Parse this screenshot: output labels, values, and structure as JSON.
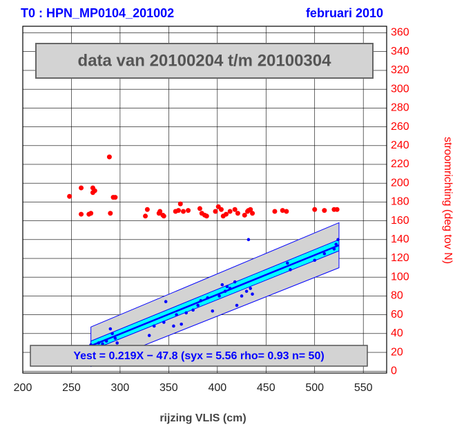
{
  "chart_data": {
    "type": "scatter",
    "title": "T0 : HPN_MP0104_201002",
    "subtitle": "februari 2010",
    "annotation": "data van 20100204 t/m 20100304",
    "equation": "Yest = 0.219X − 47.8 (syx = 5.56 rho= 0.93 n= 50)",
    "x_label": "rijzing VLIS (cm)",
    "y2_label": "stroomrichting (deg tov N)",
    "xlim": [
      200,
      574
    ],
    "xticks": [
      200,
      250,
      300,
      350,
      400,
      450,
      500,
      550
    ],
    "y2lim": [
      -2,
      367
    ],
    "y2ticks": [
      0,
      20,
      40,
      60,
      80,
      100,
      120,
      140,
      160,
      180,
      200,
      220,
      240,
      260,
      280,
      300,
      320,
      340,
      360
    ],
    "grid": true,
    "prediction_band": {
      "color": "#d3d3d3",
      "x": [
        270,
        525
      ],
      "lower": [
        5,
        110
      ],
      "upper": [
        47,
        158
      ]
    },
    "confidence_band": {
      "color": "#00ffff",
      "x": [
        270,
        525
      ],
      "lower": [
        22,
        128
      ],
      "upper": [
        32,
        140
      ]
    },
    "fit": {
      "color": "#0000ff",
      "x": [
        270,
        525
      ],
      "y": [
        27,
        134
      ]
    },
    "series": [
      {
        "color": "#ff0000",
        "axis": "y2",
        "x": [
          248,
          260,
          260,
          268,
          270,
          272,
          274,
          272,
          289,
          290,
          293,
          295,
          326,
          328,
          340,
          341,
          344,
          345,
          357,
          360,
          362,
          365,
          370,
          382,
          384,
          387,
          389,
          398,
          401,
          404,
          406,
          409,
          413,
          418,
          421,
          428,
          431,
          432,
          434,
          436,
          459,
          467,
          471,
          500,
          510,
          520,
          523
        ],
        "values": [
          186,
          195,
          167,
          167,
          168,
          195,
          192,
          190,
          228,
          168,
          185,
          185,
          165,
          172,
          168,
          170,
          166,
          165,
          170,
          171,
          178,
          170,
          171,
          173,
          168,
          166,
          165,
          170,
          175,
          172,
          165,
          167,
          170,
          172,
          168,
          166,
          170,
          171,
          172,
          168,
          170,
          171,
          170,
          172,
          171,
          172,
          172
        ]
      },
      {
        "color": "#0000ff",
        "axis": "y2",
        "x": [
          270,
          278,
          282,
          286,
          290,
          292,
          295,
          297,
          330,
          335,
          345,
          347,
          355,
          358,
          363,
          368,
          375,
          380,
          383,
          390,
          395,
          402,
          405,
          408,
          410,
          413,
          418,
          420,
          425,
          430,
          432,
          434,
          436,
          472,
          475,
          500,
          510,
          520,
          522,
          524
        ],
        "values": [
          28,
          30,
          29,
          32,
          45,
          40,
          35,
          30,
          38,
          48,
          52,
          74,
          48,
          60,
          50,
          62,
          65,
          70,
          75,
          78,
          64,
          80,
          92,
          85,
          90,
          88,
          95,
          70,
          80,
          85,
          140,
          88,
          82,
          115,
          108,
          118,
          125,
          130,
          135,
          140
        ]
      }
    ]
  }
}
